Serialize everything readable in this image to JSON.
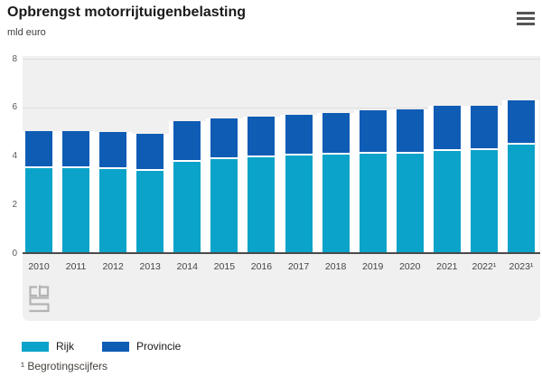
{
  "header": {
    "title": "Opbrengst motorrijtuigenbelasting",
    "unit_label": "mld euro"
  },
  "chart_data": {
    "type": "bar",
    "stacked": true,
    "title": "Opbrengst motorrijtuigenbelasting",
    "ylabel": "mld euro",
    "xlabel": "",
    "categories": [
      "2010",
      "2011",
      "2012",
      "2013",
      "2014",
      "2015",
      "2016",
      "2017",
      "2018",
      "2019",
      "2020",
      "2021",
      "2022¹",
      "2023¹"
    ],
    "series": [
      {
        "name": "Rijk",
        "color": "#0ba3c9",
        "values": [
          3.6,
          3.6,
          3.55,
          3.5,
          3.85,
          3.95,
          4.05,
          4.1,
          4.15,
          4.2,
          4.2,
          4.3,
          4.35,
          4.55
        ]
      },
      {
        "name": "Provincie",
        "color": "#0f5cb5",
        "values": [
          1.45,
          1.45,
          1.45,
          1.45,
          1.6,
          1.6,
          1.6,
          1.6,
          1.65,
          1.7,
          1.75,
          1.8,
          1.75,
          1.75
        ]
      }
    ],
    "totals": [
      5.05,
      5.05,
      5.0,
      4.95,
      5.45,
      5.55,
      5.65,
      5.7,
      5.8,
      5.9,
      5.95,
      6.1,
      6.1,
      6.3
    ],
    "ylim": [
      0,
      8
    ],
    "y_ticks": [
      0,
      2,
      4,
      6,
      8
    ],
    "grid": "horizontal",
    "legend_position": "bottom-left"
  },
  "legend": {
    "items": [
      {
        "label": "Rijk",
        "color": "#0ba3c9"
      },
      {
        "label": "Provincie",
        "color": "#0f5cb5"
      }
    ]
  },
  "footnote": "¹ Begrotingscijfers",
  "icons": {
    "menu": "hamburger-icon",
    "logo": "cbs-logo"
  },
  "colors": {
    "rijk": "#0ba3c9",
    "provincie": "#0f5cb5",
    "plot_background": "#f0f0f0",
    "gridline": "#dedede",
    "baseline": "#4a4a4a",
    "title_text": "#1a1a1a",
    "axis_text": "#595959",
    "category_text": "#444444",
    "logo_gray": "#b3b3b3",
    "menu_icon": "#555555"
  }
}
